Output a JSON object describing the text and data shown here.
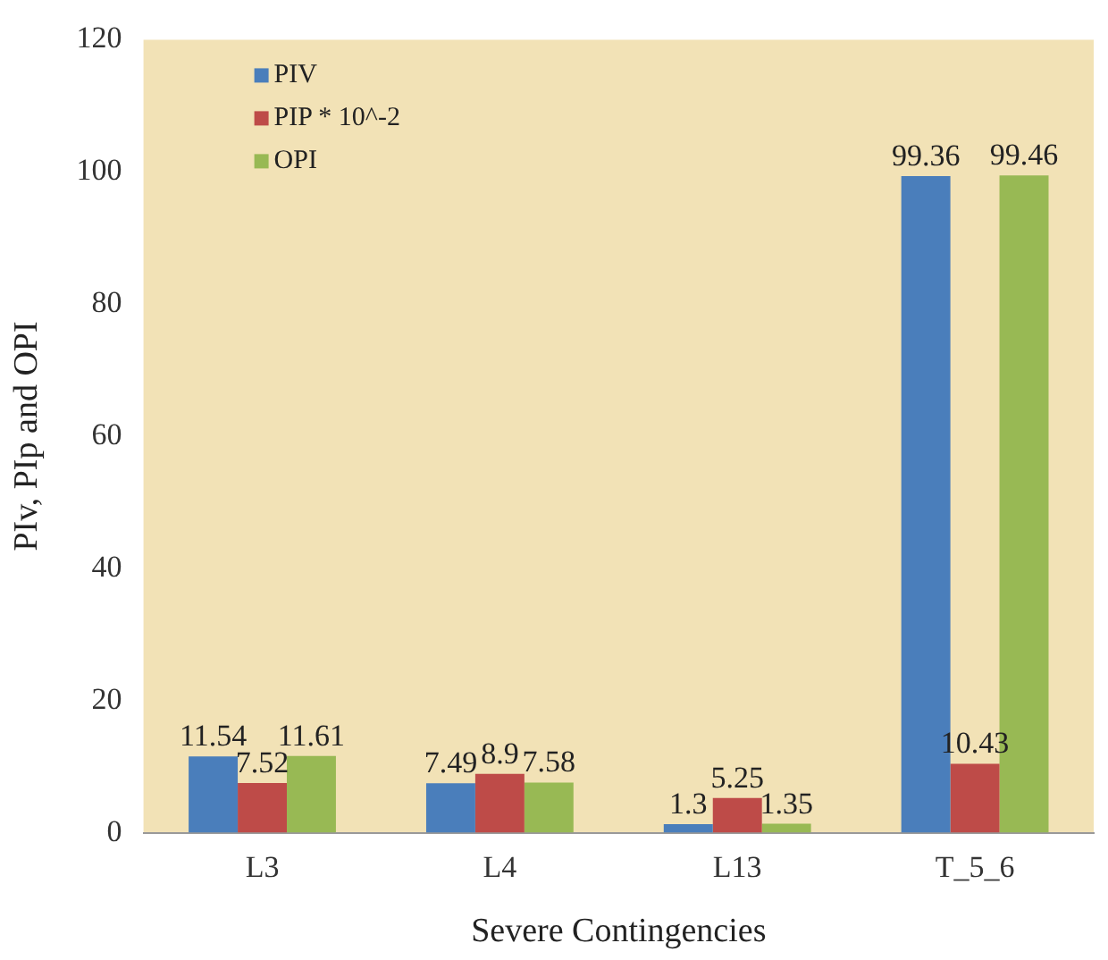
{
  "chart_data": {
    "type": "bar",
    "xlabel": "Severe Contingencies",
    "ylabel": "PIv, PIp and OPI",
    "categories": [
      "L3",
      "L4",
      "L13",
      "T_5_6"
    ],
    "series": [
      {
        "name": "PIV",
        "color": "#4a7ebb",
        "values": [
          11.54,
          7.49,
          1.3,
          99.36
        ]
      },
      {
        "name": "PIP * 10^-2",
        "color": "#be4b48",
        "values": [
          7.52,
          8.9,
          5.25,
          10.43
        ]
      },
      {
        "name": "OPI",
        "color": "#98b954",
        "values": [
          11.61,
          7.58,
          1.35,
          99.46
        ]
      }
    ],
    "ylim": [
      0,
      120
    ],
    "yticks": [
      0,
      20,
      40,
      60,
      80,
      100,
      120
    ],
    "grid": false,
    "legend": "top left",
    "data_labels": true
  }
}
